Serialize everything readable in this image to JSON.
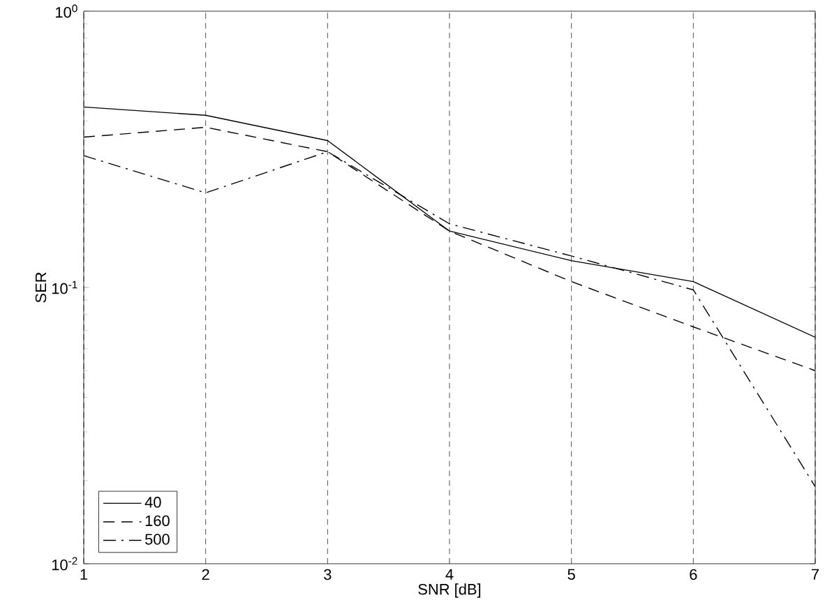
{
  "chart_data": {
    "type": "line",
    "xlabel": "SNR [dB]",
    "ylabel": "SER",
    "log": "y",
    "grid": "x",
    "legend": "bottom left",
    "marker": "none",
    "x": [
      1,
      2,
      3,
      4,
      5,
      6,
      7
    ],
    "xlim": [
      1,
      7
    ],
    "xticks": [
      1,
      2,
      3,
      4,
      5,
      6,
      7
    ],
    "ylim": [
      0.01,
      1
    ],
    "yticks": [
      {
        "value": 0.01,
        "label": "10$^{-2}$"
      },
      {
        "value": 0.1,
        "label": "10$^{-1}$"
      },
      {
        "value": 1,
        "label": "10$^{0}$"
      }
    ],
    "series": [
      {
        "name": "40",
        "color": "#000000",
        "line_style": "solid",
        "values": [
          0.45,
          0.42,
          0.34,
          0.16,
          0.125,
          0.105,
          0.066
        ]
      },
      {
        "name": "160",
        "color": "#000000",
        "line_style": "dashed",
        "values": [
          0.35,
          0.38,
          0.31,
          0.16,
          0.105,
          0.072,
          0.05
        ]
      },
      {
        "name": "500",
        "color": "#000000",
        "line_style": "dashdot",
        "values": [
          0.3,
          0.22,
          0.31,
          0.17,
          0.13,
          0.098,
          0.019
        ]
      }
    ]
  }
}
